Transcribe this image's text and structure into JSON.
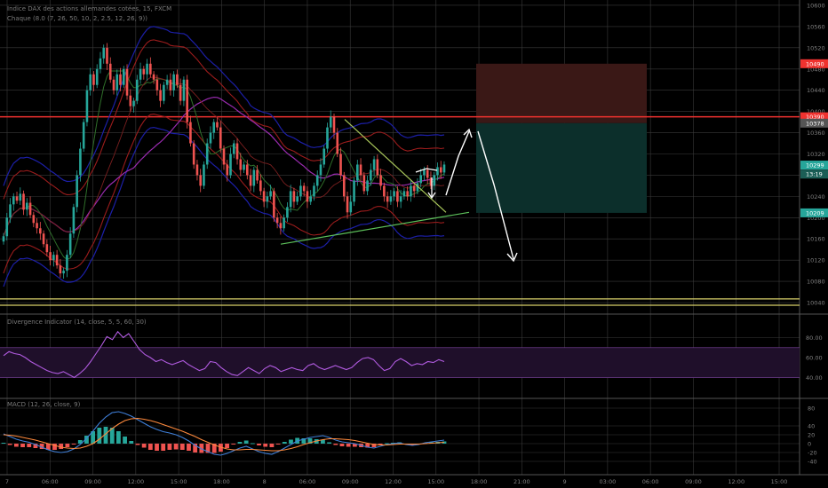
{
  "header": {
    "title": "Indice DAX des actions allemandes cotées, 15, FXCM",
    "indicator_line": "Chaque (8.0 (7, 26, 50, 10, 2, 2.5, 12, 26, 9))",
    "rsi_label": "Divergence Indicator (14, close, 5, 5, 60, 30)",
    "macd_label": "MACD (12, 26, close, 9)"
  },
  "colors": {
    "background": "#000000",
    "grid": "#3a3a3a",
    "candle_up": "#26a69a",
    "candle_down": "#ef5350",
    "resistance": "#f0322f",
    "support_band": "#d8d06a",
    "stop_zone": "#3a1816",
    "target_zone": "#0c2f2b",
    "rsi_line": "#b15be0",
    "macd_line": "#3f7fd8",
    "signal_line": "#ff8a3d",
    "triangle_upper": "#a9c65a",
    "triangle_lower": "#5cc05a",
    "projection_arrows": "#ffffff"
  },
  "chart_data": [
    {
      "type": "candlestick",
      "panel": "price",
      "timeframe_minutes": 15,
      "ylim": [
        10025,
        10610
      ],
      "price_axis_ticks": [
        10600,
        10560,
        10520,
        10480,
        10440,
        10400,
        10360,
        10320,
        10280,
        10240,
        10200,
        10160,
        10120,
        10080,
        10040
      ],
      "price_tags": [
        {
          "label": "10490",
          "value": 10490,
          "color": "#f0322f"
        },
        {
          "label": "10390",
          "value": 10390,
          "color": "#f0322f"
        },
        {
          "label": "10378",
          "value": 10378,
          "color": "#555555"
        },
        {
          "label": "10299",
          "value": 10299,
          "color": "#26a69a"
        },
        {
          "label": "13:19",
          "value": 10282,
          "color": "#1b5e56"
        },
        {
          "label": "10209",
          "value": 10209,
          "color": "#26a69a"
        }
      ],
      "time_axis_labels": [
        "7",
        "06:00",
        "09:00",
        "12:00",
        "15:00",
        "18:00",
        "8",
        "06:00",
        "09:00",
        "12:00",
        "15:00",
        "18:00",
        "21:00",
        "9",
        "03:00",
        "06:00",
        "09:00",
        "12:00",
        "15:00"
      ],
      "close": [
        10165,
        10200,
        10225,
        10240,
        10232,
        10245,
        10215,
        10228,
        10205,
        10190,
        10180,
        10170,
        10150,
        10135,
        10120,
        10130,
        10110,
        10095,
        10100,
        10130,
        10170,
        10220,
        10280,
        10330,
        10380,
        10440,
        10470,
        10450,
        10480,
        10500,
        10520,
        10490,
        10460,
        10440,
        10470,
        10450,
        10480,
        10430,
        10410,
        10420,
        10460,
        10480,
        10470,
        10490,
        10470,
        10460,
        10440,
        10420,
        10450,
        10460,
        10440,
        10470,
        10450,
        10420,
        10460,
        10380,
        10340,
        10300,
        10280,
        10260,
        10300,
        10340,
        10360,
        10380,
        10370,
        10330,
        10300,
        10280,
        10320,
        10340,
        10310,
        10290,
        10300,
        10280,
        10260,
        10290,
        10270,
        10250,
        10230,
        10240,
        10250,
        10200,
        10190,
        10180,
        10200,
        10220,
        10250,
        10230,
        10240,
        10260,
        10250,
        10230,
        10240,
        10260,
        10280,
        10300,
        10330,
        10370,
        10390,
        10360,
        10320,
        10280,
        10240,
        10210,
        10230,
        10270,
        10300,
        10280,
        10250,
        10270,
        10290,
        10310,
        10280,
        10260,
        10240,
        10230,
        10240,
        10250,
        10230,
        10240,
        10250,
        10240,
        10260,
        10250,
        10265,
        10280,
        10290,
        10275,
        10260,
        10280,
        10295,
        10285,
        10300
      ],
      "annotations": {
        "resistance_level": 10390,
        "support_band": [
          10035,
          10047
        ],
        "long_position": {
          "stop": 10490,
          "entry": 10378,
          "target": 10209
        }
      }
    },
    {
      "type": "line",
      "panel": "rsi",
      "ylim": [
        20,
        100
      ],
      "axis_ticks": [
        "80.00",
        "60.00",
        "40.00"
      ],
      "band": [
        40,
        70
      ],
      "series": [
        {
          "values": [
            62,
            66,
            64,
            63,
            60,
            56,
            53,
            50,
            47,
            45,
            44,
            46,
            43,
            40,
            44,
            49,
            56,
            64,
            72,
            81,
            78,
            86,
            80,
            84,
            76,
            68,
            63,
            60,
            56,
            58,
            55,
            53,
            55,
            57,
            53,
            50,
            47,
            49,
            56,
            55,
            50,
            46,
            43,
            42,
            46,
            50,
            47,
            44,
            49,
            52,
            50,
            46,
            48,
            50,
            48,
            47,
            52,
            54,
            50,
            48,
            50,
            52,
            50,
            48,
            50,
            55,
            59,
            60,
            58,
            52,
            47,
            49,
            56,
            59,
            56,
            52,
            54,
            53,
            56,
            55,
            58,
            56
          ]
        }
      ]
    },
    {
      "type": "line",
      "panel": "macd",
      "ylim": [
        -60,
        100
      ],
      "axis_ticks": [
        "80",
        "40",
        "20",
        "0",
        "-20",
        "-40"
      ],
      "series": [
        {
          "values": [
            22,
            16,
            10,
            6,
            3,
            -2,
            -8,
            -14,
            -18,
            -20,
            -18,
            -12,
            -2,
            12,
            28,
            46,
            60,
            70,
            72,
            68,
            62,
            54,
            46,
            38,
            32,
            27,
            24,
            20,
            14,
            6,
            -4,
            -12,
            -18,
            -24,
            -26,
            -22,
            -16,
            -10,
            -6,
            -12,
            -18,
            -22,
            -24,
            -18,
            -10,
            -2,
            6,
            10,
            14,
            16,
            18,
            14,
            8,
            4,
            2,
            0,
            -4,
            -8,
            -10,
            -6,
            -2,
            0,
            2,
            -2,
            -4,
            -2,
            2,
            4,
            6,
            8
          ]
        },
        {
          "values": [
            20,
            19,
            17,
            14,
            11,
            8,
            4,
            0,
            -4,
            -8,
            -10,
            -11,
            -10,
            -6,
            0,
            10,
            22,
            34,
            44,
            52,
            56,
            57,
            55,
            52,
            48,
            43,
            38,
            33,
            28,
            22,
            16,
            9,
            3,
            -3,
            -8,
            -12,
            -14,
            -14,
            -13,
            -13,
            -14,
            -15,
            -16,
            -16,
            -14,
            -11,
            -7,
            -2,
            2,
            6,
            9,
            11,
            11,
            10,
            9,
            7,
            4,
            1,
            -2,
            -3,
            -3,
            -2,
            -1,
            -1,
            -1,
            -1,
            0,
            1,
            2,
            3
          ]
        },
        {
          "values": [
            2,
            -3,
            -7,
            -8,
            -8,
            -10,
            -12,
            -14,
            -14,
            -12,
            -8,
            -1,
            8,
            18,
            28,
            36,
            38,
            36,
            28,
            16,
            6,
            -3,
            -9,
            -14,
            -16,
            -16,
            -14,
            -13,
            -14,
            -16,
            -20,
            -21,
            -21,
            -21,
            -18,
            -10,
            -2,
            4,
            7,
            1,
            -4,
            -7,
            -8,
            -2,
            4,
            9,
            13,
            12,
            12,
            10,
            9,
            3,
            -3,
            -6,
            -7,
            -7,
            -8,
            -9,
            -8,
            -3,
            1,
            2,
            3,
            -1,
            -3,
            -1,
            2,
            3,
            4,
            5
          ]
        }
      ]
    }
  ]
}
